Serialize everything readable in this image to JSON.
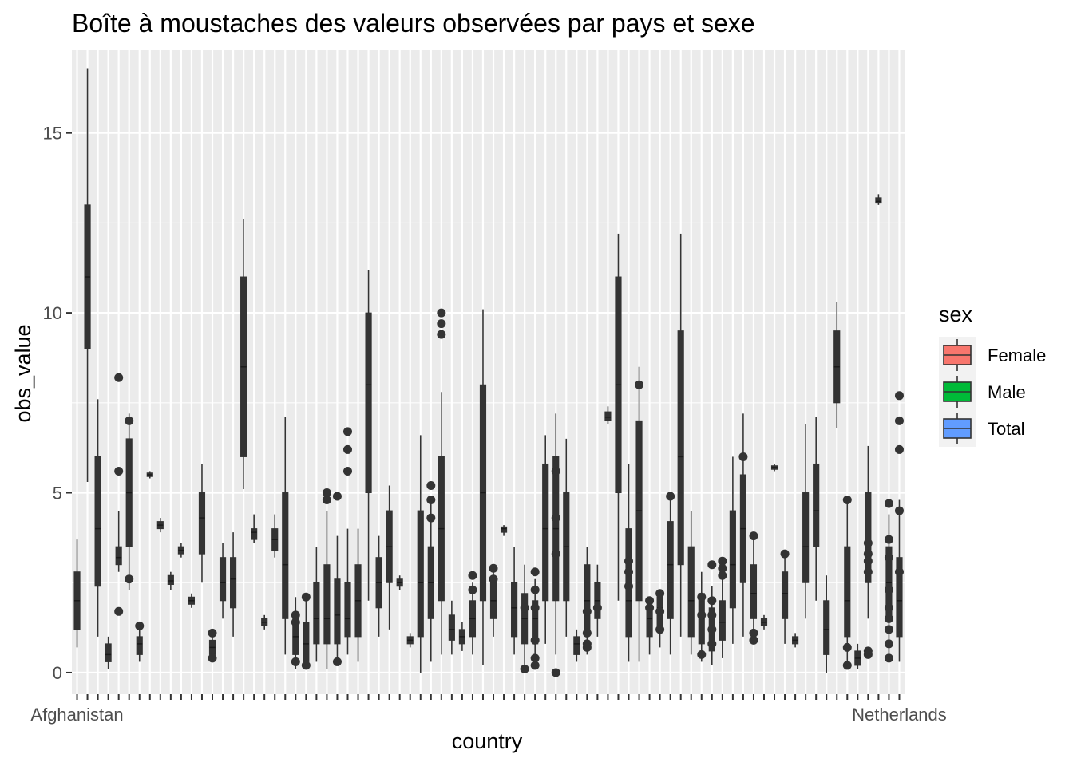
{
  "chart_data": {
    "type": "boxplot",
    "title": "Boîte à moustaches des valeurs observées par pays et sexe",
    "xlabel": "country",
    "ylabel": "obs_value",
    "ylim": [
      -0.6,
      17.3
    ],
    "y_ticks": [
      0,
      5,
      10,
      15
    ],
    "grid": true,
    "legend_placement": "right",
    "legend": {
      "title": "sex",
      "entries": [
        {
          "name": "Female",
          "color": "#F8766D"
        },
        {
          "name": "Male",
          "color": "#00BA38"
        },
        {
          "name": "Total",
          "color": "#619CFF"
        }
      ]
    },
    "x_tick_labels_first": "Afghanistan",
    "x_tick_labels_last": "Netherlands",
    "n_countries": 80,
    "box_color": "#333333",
    "panel_background": "#EBEBEB",
    "series": [
      {
        "country_index": 0,
        "min": 0.7,
        "q1": 1.2,
        "median": 2.0,
        "q3": 2.8,
        "max": 3.7
      },
      {
        "country_index": 1,
        "min": 5.3,
        "q1": 9.0,
        "median": 11.0,
        "q3": 13.0,
        "max": 16.8
      },
      {
        "country_index": 2,
        "min": 1.0,
        "q1": 2.4,
        "median": 4.0,
        "q3": 6.0,
        "max": 7.6
      },
      {
        "country_index": 3,
        "min": 0.1,
        "q1": 0.3,
        "median": 0.5,
        "q3": 0.8,
        "max": 1.0
      },
      {
        "country_index": 4,
        "min": 2.8,
        "q1": 3.0,
        "median": 3.2,
        "q3": 3.5,
        "max": 4.5,
        "outliers": [
          8.2,
          5.6,
          1.7
        ]
      },
      {
        "country_index": 5,
        "min": 2.3,
        "q1": 3.5,
        "median": 5.0,
        "q3": 6.5,
        "max": 7.2,
        "outliers": [
          7.0,
          2.6
        ]
      },
      {
        "country_index": 6,
        "min": 0.3,
        "q1": 0.5,
        "median": 0.8,
        "q3": 1.0,
        "max": 1.2,
        "outliers": [
          1.3
        ]
      },
      {
        "country_index": 7,
        "min": 5.4,
        "q1": 5.45,
        "median": 5.5,
        "q3": 5.55,
        "max": 5.6
      },
      {
        "country_index": 8,
        "min": 3.9,
        "q1": 4.0,
        "median": 4.1,
        "q3": 4.2,
        "max": 4.3
      },
      {
        "country_index": 9,
        "min": 2.3,
        "q1": 2.45,
        "median": 2.55,
        "q3": 2.7,
        "max": 2.8
      },
      {
        "country_index": 10,
        "min": 3.2,
        "q1": 3.3,
        "median": 3.4,
        "q3": 3.5,
        "max": 3.6
      },
      {
        "country_index": 11,
        "min": 1.8,
        "q1": 1.9,
        "median": 2.0,
        "q3": 2.1,
        "max": 2.2
      },
      {
        "country_index": 12,
        "min": 2.5,
        "q1": 3.3,
        "median": 4.3,
        "q3": 5.0,
        "max": 5.8
      },
      {
        "country_index": 13,
        "min": 0.3,
        "q1": 0.5,
        "median": 0.7,
        "q3": 0.9,
        "max": 1.0,
        "outliers": [
          1.1,
          0.4
        ]
      },
      {
        "country_index": 14,
        "min": 1.5,
        "q1": 2.0,
        "median": 2.5,
        "q3": 3.2,
        "max": 3.6
      },
      {
        "country_index": 15,
        "min": 1.0,
        "q1": 1.8,
        "median": 2.6,
        "q3": 3.2,
        "max": 3.9
      },
      {
        "country_index": 16,
        "min": 5.1,
        "q1": 6.0,
        "median": 8.5,
        "q3": 11.0,
        "max": 12.6
      },
      {
        "country_index": 17,
        "min": 3.6,
        "q1": 3.7,
        "median": 3.9,
        "q3": 4.0,
        "max": 4.4
      },
      {
        "country_index": 18,
        "min": 1.2,
        "q1": 1.3,
        "median": 1.4,
        "q3": 1.5,
        "max": 1.6
      },
      {
        "country_index": 19,
        "min": 3.2,
        "q1": 3.4,
        "median": 3.7,
        "q3": 4.0,
        "max": 4.4
      },
      {
        "country_index": 20,
        "min": 0.5,
        "q1": 1.5,
        "median": 3.0,
        "q3": 5.0,
        "max": 7.1
      },
      {
        "country_index": 21,
        "min": 0.1,
        "q1": 0.5,
        "median": 1.0,
        "q3": 1.5,
        "max": 2.1,
        "outliers": [
          1.6,
          1.4,
          0.3
        ]
      },
      {
        "country_index": 22,
        "min": 0.1,
        "q1": 0.3,
        "median": 0.8,
        "q3": 1.4,
        "max": 2.0,
        "outliers": [
          2.1,
          0.2
        ]
      },
      {
        "country_index": 23,
        "min": 0.3,
        "q1": 0.8,
        "median": 1.5,
        "q3": 2.5,
        "max": 3.5
      },
      {
        "country_index": 24,
        "min": 0.1,
        "q1": 0.8,
        "median": 1.5,
        "q3": 3.0,
        "max": 4.5,
        "outliers": [
          4.8,
          5.0
        ]
      },
      {
        "country_index": 25,
        "min": 0.2,
        "q1": 0.8,
        "median": 1.6,
        "q3": 2.6,
        "max": 3.8,
        "outliers": [
          4.9,
          0.3
        ]
      },
      {
        "country_index": 26,
        "min": 0.5,
        "q1": 1.0,
        "median": 1.5,
        "q3": 2.5,
        "max": 4.0,
        "outliers": [
          6.7,
          6.2,
          5.6
        ]
      },
      {
        "country_index": 27,
        "min": 0.3,
        "q1": 1.0,
        "median": 2.0,
        "q3": 3.0,
        "max": 4.0
      },
      {
        "country_index": 28,
        "min": 2.0,
        "q1": 5.0,
        "median": 8.0,
        "q3": 10.0,
        "max": 11.2
      },
      {
        "country_index": 29,
        "min": 1.0,
        "q1": 1.8,
        "median": 2.5,
        "q3": 3.2,
        "max": 3.8
      },
      {
        "country_index": 30,
        "min": 1.2,
        "q1": 2.5,
        "median": 3.5,
        "q3": 4.5,
        "max": 5.2
      },
      {
        "country_index": 31,
        "min": 2.3,
        "q1": 2.4,
        "median": 2.5,
        "q3": 2.6,
        "max": 2.7
      },
      {
        "country_index": 32,
        "min": 0.7,
        "q1": 0.8,
        "median": 0.9,
        "q3": 1.0,
        "max": 1.1
      },
      {
        "country_index": 33,
        "min": 0.0,
        "q1": 1.0,
        "median": 2.5,
        "q3": 4.5,
        "max": 6.6
      },
      {
        "country_index": 34,
        "min": 0.3,
        "q1": 1.5,
        "median": 2.5,
        "q3": 3.5,
        "max": 4.8,
        "outliers": [
          5.2,
          4.8,
          4.3
        ]
      },
      {
        "country_index": 35,
        "min": 0.5,
        "q1": 2.0,
        "median": 4.0,
        "q3": 6.0,
        "max": 7.8,
        "outliers": [
          10.0,
          9.7,
          9.4
        ]
      },
      {
        "country_index": 36,
        "min": 0.5,
        "q1": 0.9,
        "median": 1.2,
        "q3": 1.6,
        "max": 2.0
      },
      {
        "country_index": 37,
        "min": 0.6,
        "q1": 0.8,
        "median": 1.0,
        "q3": 1.2,
        "max": 1.4
      },
      {
        "country_index": 38,
        "min": 0.5,
        "q1": 1.0,
        "median": 1.5,
        "q3": 2.0,
        "max": 2.5,
        "outliers": [
          2.7,
          2.3
        ]
      },
      {
        "country_index": 39,
        "min": 0.2,
        "q1": 2.0,
        "median": 5.0,
        "q3": 8.0,
        "max": 10.1
      },
      {
        "country_index": 40,
        "min": 1.0,
        "q1": 1.5,
        "median": 2.0,
        "q3": 2.5,
        "max": 2.8,
        "outliers": [
          2.9,
          2.6
        ]
      },
      {
        "country_index": 41,
        "min": 3.8,
        "q1": 3.9,
        "median": 4.0,
        "q3": 4.05,
        "max": 4.1
      },
      {
        "country_index": 42,
        "min": 0.5,
        "q1": 1.0,
        "median": 1.8,
        "q3": 2.5,
        "max": 3.5
      },
      {
        "country_index": 43,
        "min": 0.2,
        "q1": 0.8,
        "median": 1.5,
        "q3": 2.2,
        "max": 3.0,
        "outliers": [
          1.8,
          0.1
        ]
      },
      {
        "country_index": 44,
        "min": 0.3,
        "q1": 0.8,
        "median": 1.5,
        "q3": 2.0,
        "max": 2.6,
        "outliers": [
          2.8,
          2.3,
          1.8,
          0.9,
          0.4,
          0.2
        ]
      },
      {
        "country_index": 45,
        "min": 0.8,
        "q1": 2.0,
        "median": 4.0,
        "q3": 5.8,
        "max": 6.6
      },
      {
        "country_index": 46,
        "min": 0.5,
        "q1": 2.0,
        "median": 4.0,
        "q3": 6.0,
        "max": 7.2,
        "outliers": [
          5.6,
          4.3,
          3.3,
          0.0
        ]
      },
      {
        "country_index": 47,
        "min": 1.0,
        "q1": 2.0,
        "median": 3.5,
        "q3": 5.0,
        "max": 6.5
      },
      {
        "country_index": 48,
        "min": 0.3,
        "q1": 0.5,
        "median": 0.8,
        "q3": 1.0,
        "max": 1.2
      },
      {
        "country_index": 49,
        "min": 0.5,
        "q1": 1.2,
        "median": 2.0,
        "q3": 3.0,
        "max": 3.5,
        "outliers": [
          1.7,
          1.1,
          0.8,
          0.7
        ]
      },
      {
        "country_index": 50,
        "min": 1.0,
        "q1": 1.5,
        "median": 2.0,
        "q3": 2.5,
        "max": 3.0,
        "outliers": [
          1.8
        ]
      },
      {
        "country_index": 51,
        "min": 6.9,
        "q1": 7.0,
        "median": 7.1,
        "q3": 7.25,
        "max": 7.4
      },
      {
        "country_index": 52,
        "min": 2.0,
        "q1": 5.0,
        "median": 8.0,
        "q3": 11.0,
        "max": 12.2
      },
      {
        "country_index": 53,
        "min": 0.3,
        "q1": 1.0,
        "median": 2.0,
        "q3": 4.0,
        "max": 5.8,
        "outliers": [
          3.1,
          2.8,
          2.4
        ]
      },
      {
        "country_index": 54,
        "min": 0.3,
        "q1": 2.0,
        "median": 4.5,
        "q3": 7.0,
        "max": 8.5,
        "outliers": [
          8.0
        ]
      },
      {
        "country_index": 55,
        "min": 0.5,
        "q1": 1.0,
        "median": 1.5,
        "q3": 1.8,
        "max": 2.0,
        "outliers": [
          2.0,
          1.8
        ]
      },
      {
        "country_index": 56,
        "min": 0.7,
        "q1": 1.3,
        "median": 1.8,
        "q3": 2.1,
        "max": 2.3,
        "outliers": [
          2.2,
          1.7,
          1.2
        ]
      },
      {
        "country_index": 57,
        "min": 0.5,
        "q1": 1.5,
        "median": 3.0,
        "q3": 4.2,
        "max": 5.0,
        "outliers": [
          4.9
        ]
      },
      {
        "country_index": 58,
        "min": 1.0,
        "q1": 3.0,
        "median": 6.0,
        "q3": 9.5,
        "max": 12.2
      },
      {
        "country_index": 59,
        "min": 0.5,
        "q1": 1.0,
        "median": 2.0,
        "q3": 3.5,
        "max": 4.5
      },
      {
        "country_index": 60,
        "min": 0.3,
        "q1": 0.8,
        "median": 1.5,
        "q3": 2.2,
        "max": 2.8,
        "outliers": [
          2.1,
          1.6,
          0.5
        ]
      },
      {
        "country_index": 61,
        "min": 0.2,
        "q1": 0.6,
        "median": 1.2,
        "q3": 1.8,
        "max": 2.4,
        "outliers": [
          3.0,
          2.0,
          1.6,
          1.2,
          0.8
        ]
      },
      {
        "country_index": 62,
        "min": 0.4,
        "q1": 0.9,
        "median": 1.4,
        "q3": 2.0,
        "max": 2.6,
        "outliers": [
          3.1,
          2.9,
          2.7
        ]
      },
      {
        "country_index": 63,
        "min": 0.8,
        "q1": 1.8,
        "median": 3.0,
        "q3": 4.5,
        "max": 6.0
      },
      {
        "country_index": 64,
        "min": 1.0,
        "q1": 2.5,
        "median": 4.0,
        "q3": 5.5,
        "max": 7.2,
        "outliers": [
          6.0
        ]
      },
      {
        "country_index": 65,
        "min": 0.8,
        "q1": 1.5,
        "median": 2.2,
        "q3": 3.0,
        "max": 3.8,
        "outliers": [
          3.8,
          1.1,
          0.9
        ]
      },
      {
        "country_index": 66,
        "min": 1.2,
        "q1": 1.3,
        "median": 1.4,
        "q3": 1.5,
        "max": 1.6
      },
      {
        "country_index": 67,
        "min": 5.6,
        "q1": 5.65,
        "median": 5.7,
        "q3": 5.75,
        "max": 5.8
      },
      {
        "country_index": 68,
        "min": 0.8,
        "q1": 1.5,
        "median": 2.2,
        "q3": 2.8,
        "max": 3.3,
        "outliers": [
          3.3
        ]
      },
      {
        "country_index": 69,
        "min": 0.7,
        "q1": 0.8,
        "median": 0.9,
        "q3": 1.0,
        "max": 1.1
      },
      {
        "country_index": 70,
        "min": 1.5,
        "q1": 2.5,
        "median": 3.5,
        "q3": 5.0,
        "max": 6.9
      },
      {
        "country_index": 71,
        "min": 2.0,
        "q1": 3.5,
        "median": 4.5,
        "q3": 5.8,
        "max": 7.1
      },
      {
        "country_index": 72,
        "min": 0.0,
        "q1": 0.5,
        "median": 1.2,
        "q3": 2.0,
        "max": 2.7
      },
      {
        "country_index": 73,
        "min": 6.8,
        "q1": 7.5,
        "median": 8.5,
        "q3": 9.5,
        "max": 10.3
      },
      {
        "country_index": 74,
        "min": 0.2,
        "q1": 1.0,
        "median": 2.0,
        "q3": 3.5,
        "max": 4.8,
        "outliers": [
          4.8,
          0.7,
          0.2
        ]
      },
      {
        "country_index": 75,
        "min": 0.1,
        "q1": 0.2,
        "median": 0.4,
        "q3": 0.6,
        "max": 0.8
      },
      {
        "country_index": 76,
        "min": 1.5,
        "q1": 2.5,
        "median": 3.5,
        "q3": 5.0,
        "max": 6.3,
        "outliers": [
          3.6,
          3.3,
          3.1,
          2.8,
          0.6,
          0.5
        ]
      },
      {
        "country_index": 77,
        "min": 13.0,
        "q1": 13.05,
        "median": 13.1,
        "q3": 13.2,
        "max": 13.3
      },
      {
        "country_index": 78,
        "min": 0.5,
        "q1": 1.5,
        "median": 2.5,
        "q3": 3.5,
        "max": 4.4,
        "outliers": [
          4.7,
          3.7,
          3.2,
          2.3,
          1.8,
          1.5,
          1.2,
          0.8,
          0.4
        ]
      },
      {
        "country_index": 79,
        "min": 0.3,
        "q1": 1.0,
        "median": 2.0,
        "q3": 3.2,
        "max": 4.8,
        "outliers": [
          7.7,
          7.0,
          6.2,
          4.5,
          2.8
        ]
      }
    ]
  }
}
